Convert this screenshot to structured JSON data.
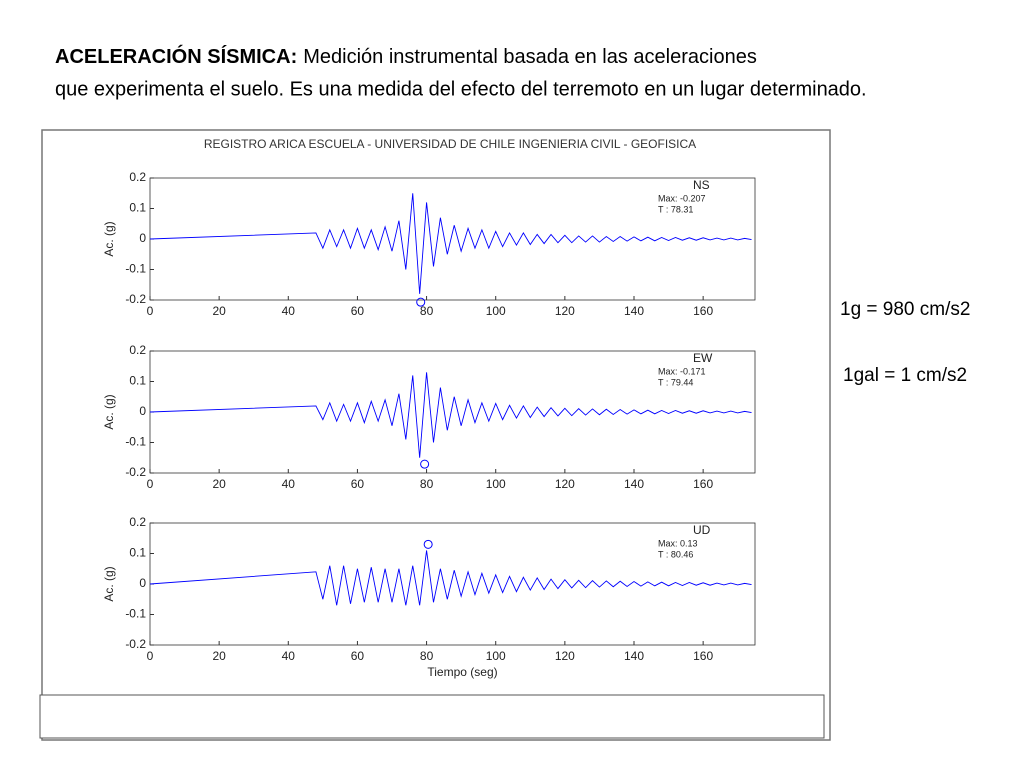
{
  "slide": {
    "heading_bold": "ACELERACIÓN SÍSMICA:",
    "heading_text": "Medición instrumental basada en las aceleraciones",
    "heading_line2": "que experimenta el suelo.  Es una medida del efecto del terremoto en un lugar determinado.",
    "notes": [
      "1g = 980 cm/s2",
      "1gal = 1 cm/s2"
    ]
  },
  "figure_title": "REGISTRO ARICA ESCUELA - UNIVERSIDAD DE CHILE  INGENIERIA CIVIL - GEOFISICA",
  "chart_data": [
    {
      "type": "line",
      "ylabel": "Ac. (g)",
      "xlim": [
        0,
        175
      ],
      "ylim": [
        -0.2,
        0.2
      ],
      "xticks": [
        0,
        20,
        40,
        60,
        80,
        100,
        120,
        140,
        160
      ],
      "yticks": [
        0.2,
        0.1,
        0,
        -0.1,
        -0.2
      ],
      "x": [
        0,
        48,
        50,
        52,
        54,
        56,
        58,
        60,
        62,
        64,
        66,
        68,
        70,
        72,
        74,
        76,
        78,
        80,
        82,
        84,
        86,
        88,
        90,
        92,
        94,
        96,
        98,
        100,
        102,
        104,
        106,
        108,
        110,
        112,
        114,
        116,
        118,
        120,
        122,
        124,
        126,
        128,
        130,
        132,
        134,
        136,
        138,
        140,
        142,
        144,
        146,
        148,
        150,
        152,
        154,
        156,
        158,
        160,
        162,
        164,
        166,
        168,
        170,
        172,
        174
      ],
      "series": [
        {
          "name": "NS",
          "color": "#0000ff",
          "values": [
            0,
            0.02,
            -0.03,
            0.03,
            -0.025,
            0.03,
            -0.03,
            0.035,
            -0.03,
            0.03,
            -0.035,
            0.04,
            -0.04,
            0.06,
            -0.1,
            0.15,
            -0.18,
            0.12,
            -0.09,
            0.07,
            -0.05,
            0.045,
            -0.04,
            0.035,
            -0.03,
            0.03,
            -0.03,
            0.025,
            -0.025,
            0.02,
            -0.02,
            0.02,
            -0.018,
            0.015,
            -0.015,
            0.015,
            -0.012,
            0.012,
            -0.012,
            0.01,
            -0.01,
            0.01,
            -0.01,
            0.008,
            -0.008,
            0.008,
            -0.007,
            0.007,
            -0.006,
            0.006,
            -0.006,
            0.005,
            -0.005,
            0.005,
            -0.004,
            0.004,
            -0.004,
            0.004,
            -0.003,
            0.003,
            -0.003,
            0.003,
            -0.003,
            0.002,
            -0.002
          ]
        }
      ],
      "annotations": [
        "Max: -0.207",
        "T  : 78.31"
      ],
      "peak": {
        "x": 78.31,
        "y": -0.207
      }
    },
    {
      "type": "line",
      "ylabel": "Ac. (g)",
      "xlim": [
        0,
        175
      ],
      "ylim": [
        -0.2,
        0.2
      ],
      "xticks": [
        0,
        20,
        40,
        60,
        80,
        100,
        120,
        140,
        160
      ],
      "yticks": [
        0.2,
        0.1,
        0,
        -0.1,
        -0.2
      ],
      "x": [
        0,
        48,
        50,
        52,
        54,
        56,
        58,
        60,
        62,
        64,
        66,
        68,
        70,
        72,
        74,
        76,
        78,
        80,
        82,
        84,
        86,
        88,
        90,
        92,
        94,
        96,
        98,
        100,
        102,
        104,
        106,
        108,
        110,
        112,
        114,
        116,
        118,
        120,
        122,
        124,
        126,
        128,
        130,
        132,
        134,
        136,
        138,
        140,
        142,
        144,
        146,
        148,
        150,
        152,
        154,
        156,
        158,
        160,
        162,
        164,
        166,
        168,
        170,
        172,
        174
      ],
      "series": [
        {
          "name": "EW",
          "color": "#0000ff",
          "values": [
            0,
            0.02,
            -0.025,
            0.03,
            -0.03,
            0.025,
            -0.03,
            0.03,
            -0.035,
            0.035,
            -0.03,
            0.04,
            -0.045,
            0.06,
            -0.09,
            0.12,
            -0.15,
            0.13,
            -0.1,
            0.08,
            -0.06,
            0.05,
            -0.045,
            0.04,
            -0.035,
            0.03,
            -0.03,
            0.028,
            -0.025,
            0.022,
            -0.02,
            0.02,
            -0.018,
            0.016,
            -0.015,
            0.014,
            -0.013,
            0.012,
            -0.012,
            0.011,
            -0.01,
            0.01,
            -0.009,
            0.009,
            -0.008,
            0.008,
            -0.007,
            0.007,
            -0.006,
            0.006,
            -0.006,
            0.005,
            -0.005,
            0.005,
            -0.004,
            0.004,
            -0.004,
            0.004,
            -0.003,
            0.003,
            -0.003,
            0.003,
            -0.003,
            0.002,
            -0.002
          ]
        }
      ],
      "annotations": [
        "Max: -0.171",
        "T  : 79.44"
      ],
      "peak": {
        "x": 79.44,
        "y": -0.171
      }
    },
    {
      "type": "line",
      "ylabel": "Ac. (g)",
      "xlabel": "Tiempo (seg)",
      "xlim": [
        0,
        175
      ],
      "ylim": [
        -0.2,
        0.2
      ],
      "xticks": [
        0,
        20,
        40,
        60,
        80,
        100,
        120,
        140,
        160
      ],
      "yticks": [
        0.2,
        0.1,
        0,
        -0.1,
        -0.2
      ],
      "x": [
        0,
        48,
        50,
        52,
        54,
        56,
        58,
        60,
        62,
        64,
        66,
        68,
        70,
        72,
        74,
        76,
        78,
        80,
        82,
        84,
        86,
        88,
        90,
        92,
        94,
        96,
        98,
        100,
        102,
        104,
        106,
        108,
        110,
        112,
        114,
        116,
        118,
        120,
        122,
        124,
        126,
        128,
        130,
        132,
        134,
        136,
        138,
        140,
        142,
        144,
        146,
        148,
        150,
        152,
        154,
        156,
        158,
        160,
        162,
        164,
        166,
        168,
        170,
        172,
        174
      ],
      "series": [
        {
          "name": "UD",
          "color": "#0000ff",
          "values": [
            0,
            0.04,
            -0.05,
            0.06,
            -0.07,
            0.06,
            -0.065,
            0.05,
            -0.06,
            0.055,
            -0.06,
            0.05,
            -0.06,
            0.05,
            -0.07,
            0.06,
            -0.07,
            0.11,
            -0.06,
            0.05,
            -0.05,
            0.045,
            -0.04,
            0.04,
            -0.035,
            0.035,
            -0.03,
            0.03,
            -0.028,
            0.025,
            -0.025,
            0.022,
            -0.02,
            0.02,
            -0.018,
            0.016,
            -0.015,
            0.014,
            -0.013,
            0.012,
            -0.012,
            0.011,
            -0.01,
            0.01,
            -0.009,
            0.009,
            -0.008,
            0.008,
            -0.007,
            0.007,
            -0.006,
            0.006,
            -0.006,
            0.005,
            -0.005,
            0.005,
            -0.004,
            0.004,
            -0.004,
            0.003,
            -0.003,
            0.003,
            -0.003,
            0.002,
            -0.002
          ]
        }
      ],
      "annotations": [
        "Max: 0.13",
        "T  : 80.46"
      ],
      "peak": {
        "x": 80.46,
        "y": 0.13
      }
    }
  ]
}
